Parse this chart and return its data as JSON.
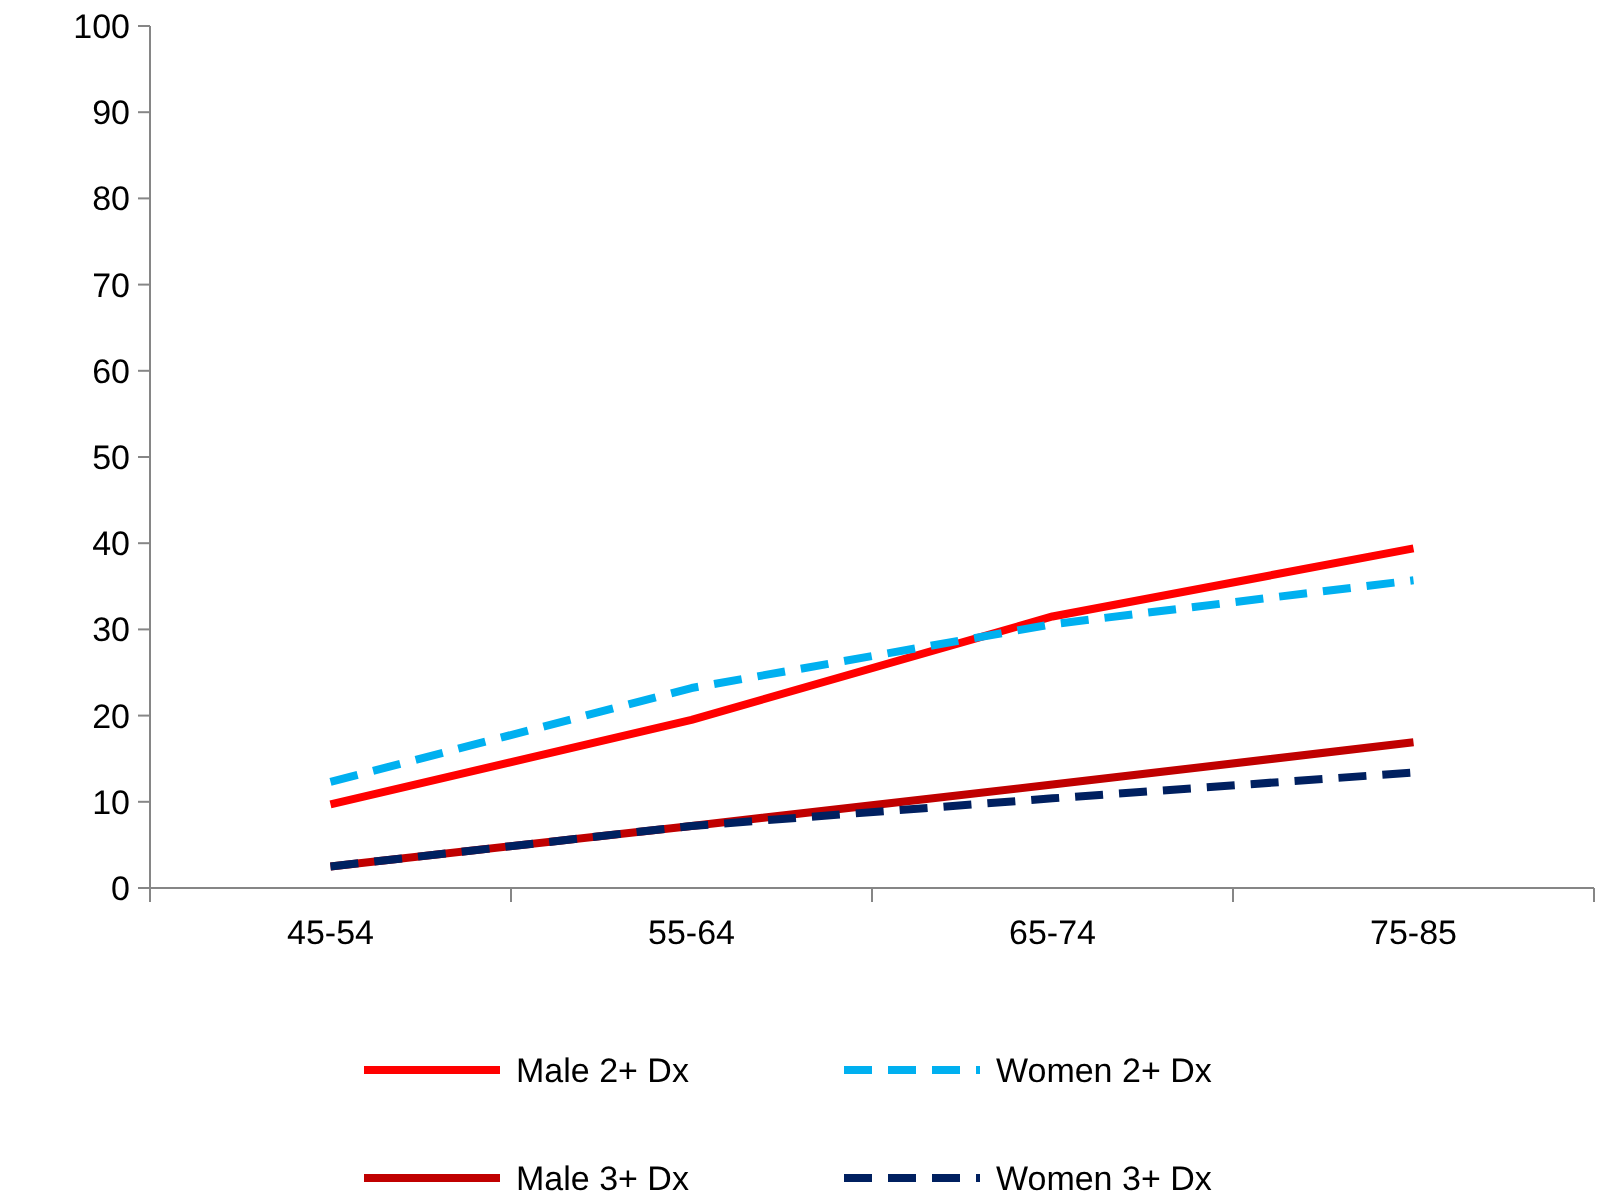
{
  "chart_data": {
    "type": "line",
    "categories": [
      "45-54",
      "55-64",
      "65-74",
      "75-85"
    ],
    "ylim": [
      0,
      100
    ],
    "yticks": [
      0,
      10,
      20,
      30,
      40,
      50,
      60,
      70,
      80,
      90,
      100
    ],
    "grid": false,
    "legend": "bottom",
    "marker": "none",
    "series": [
      {
        "name": "Male 2+ Dx",
        "color": "#ff0000",
        "line_style": "solid",
        "values": [
          9.7,
          19.5,
          31.5,
          39.4
        ]
      },
      {
        "name": "Women 2+ Dx",
        "color": "#00b0f0",
        "line_style": "dashed",
        "values": [
          12.3,
          23.2,
          30.6,
          35.7
        ]
      },
      {
        "name": "Male 3+ Dx",
        "color": "#c00000",
        "line_style": "solid",
        "values": [
          2.5,
          7.2,
          12,
          16.9
        ]
      },
      {
        "name": "Women 3+ Dx",
        "color": "#002060",
        "line_style": "dashed",
        "values": [
          2.5,
          7.2,
          10.4,
          13.4
        ]
      }
    ]
  }
}
